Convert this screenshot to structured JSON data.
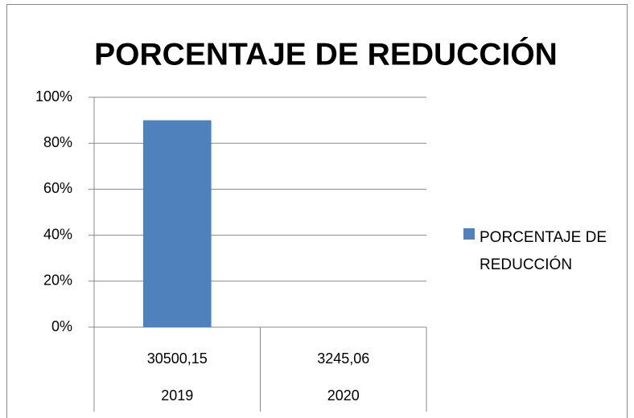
{
  "chart_data": {
    "type": "bar",
    "title": "PORCENTAJE DE REDUCCIÓN",
    "categories": [
      "30500,15",
      "3245,06"
    ],
    "category_groups": [
      "2019",
      "2020"
    ],
    "series": [
      {
        "name": "PORCENTAJE DE REDUCCIÓN",
        "color": "#4f81bd",
        "values": [
          90,
          0
        ]
      }
    ],
    "ylim": [
      0,
      100
    ],
    "yticks": [
      {
        "value": 0,
        "label": "0%"
      },
      {
        "value": 20,
        "label": "20%"
      },
      {
        "value": 40,
        "label": "40%"
      },
      {
        "value": 60,
        "label": "60%"
      },
      {
        "value": 80,
        "label": "80%"
      },
      {
        "value": 100,
        "label": "100%"
      }
    ],
    "grid": true,
    "legend": "right"
  }
}
